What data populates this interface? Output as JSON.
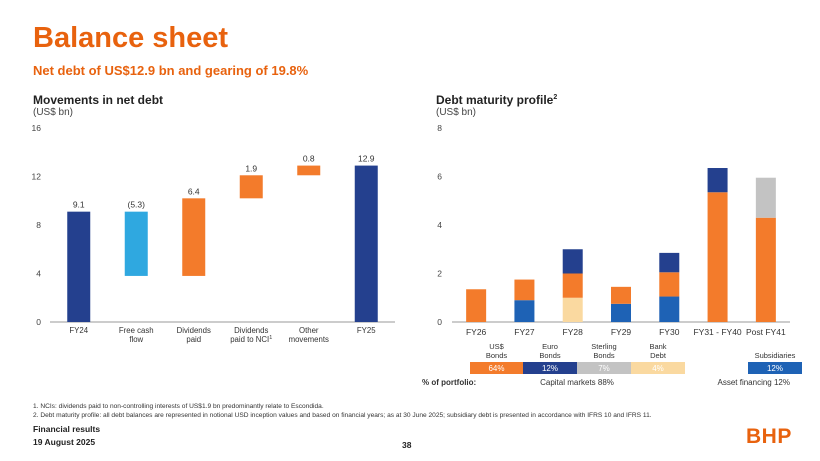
{
  "header": {
    "title": "Balance sheet",
    "subtitle": "Net debt of US$12.9 bn and gearing of 19.8%"
  },
  "colors": {
    "accent": "#E8620E",
    "navy": "#24408E",
    "lightblue": "#2FA8E0",
    "orange": "#F37B2B",
    "midblue": "#1E62B5",
    "peach": "#FAD9A0",
    "grey": "#C3C3C3"
  },
  "chart_data": [
    {
      "type": "bar",
      "subtype": "waterfall",
      "title": "Movements in net debt",
      "ylabel": "(US$ bn)",
      "ylim": [
        0,
        16
      ],
      "yticks": [
        0,
        4,
        8,
        12,
        16
      ],
      "categories": [
        "FY24",
        "Free cash\nflow",
        "Dividends\npaid",
        "Dividends\npaid to NCI",
        "Other\nmovements",
        "FY25"
      ],
      "category_labels": [
        [
          "FY24"
        ],
        [
          "Free cash",
          "flow"
        ],
        [
          "Dividends",
          "paid"
        ],
        [
          "Dividends",
          "paid to NCI"
        ],
        [
          "Other",
          "movements"
        ],
        [
          "FY25"
        ]
      ],
      "superscripts": [
        "",
        "",
        "",
        "1",
        "",
        ""
      ],
      "bars": [
        {
          "base": 0,
          "top": 9.1,
          "label": "9.1",
          "color": "navy"
        },
        {
          "base": 3.8,
          "top": 9.1,
          "label": "(5.3)",
          "color": "lightblue"
        },
        {
          "base": 3.8,
          "top": 10.2,
          "label": "6.4",
          "color": "orange"
        },
        {
          "base": 10.2,
          "top": 12.1,
          "label": "1.9",
          "color": "orange"
        },
        {
          "base": 12.1,
          "top": 12.9,
          "label": "0.8",
          "color": "orange"
        },
        {
          "base": 0,
          "top": 12.9,
          "label": "12.9",
          "color": "navy"
        }
      ]
    },
    {
      "type": "bar",
      "subtype": "stacked",
      "title": "Debt maturity profile",
      "title_sup": "2",
      "ylabel": "(US$ bn)",
      "ylim": [
        0,
        8
      ],
      "yticks": [
        0,
        2,
        4,
        6,
        8
      ],
      "categories": [
        "FY26",
        "FY27",
        "FY28",
        "FY29",
        "FY30",
        "FY31 - FY40",
        "Post FY41"
      ],
      "series": [
        {
          "name": "US$ Bonds",
          "color": "orange",
          "values": [
            1.35,
            0.85,
            1.0,
            0.7,
            1.0,
            5.35,
            4.3
          ]
        },
        {
          "name": "Euro Bonds",
          "color": "navy",
          "values": [
            0,
            0,
            1.0,
            0,
            0.8,
            1.0,
            0
          ]
        },
        {
          "name": "Sterling Bonds",
          "color": "grey",
          "values": [
            0,
            0,
            0,
            0,
            0,
            0,
            1.65
          ]
        },
        {
          "name": "Bank Debt",
          "color": "peach",
          "values": [
            0,
            0,
            1.0,
            0,
            0,
            0,
            0
          ]
        },
        {
          "name": "Subsidiaries",
          "color": "midblue",
          "values": [
            0,
            0.9,
            0,
            0.75,
            1.05,
            0,
            0
          ]
        }
      ],
      "stack_order": [
        [
          "Subsidiaries",
          "US$ Bonds"
        ],
        [
          "Subsidiaries",
          "US$ Bonds"
        ],
        [
          "Bank Debt",
          "US$ Bonds",
          "Euro Bonds"
        ],
        [
          "Subsidiaries",
          "US$ Bonds"
        ],
        [
          "Subsidiaries",
          "US$ Bonds",
          "Euro Bonds"
        ],
        [
          "US$ Bonds",
          "Euro Bonds"
        ],
        [
          "US$ Bonds",
          "Sterling Bonds"
        ]
      ],
      "legend": [
        {
          "label": [
            "US$",
            "Bonds"
          ],
          "pct": "64%",
          "color": "orange"
        },
        {
          "label": [
            "Euro",
            "Bonds"
          ],
          "pct": "12%",
          "color": "navy"
        },
        {
          "label": [
            "Sterling",
            "Bonds"
          ],
          "pct": "7%",
          "color": "grey"
        },
        {
          "label": [
            "Bank",
            "Debt"
          ],
          "pct": "4%",
          "color": "peach"
        },
        {
          "label": [
            "Subsidiaries"
          ],
          "pct": "12%",
          "color": "midblue"
        }
      ],
      "portfolio_label": "% of portfolio:",
      "capital_markets": "Capital markets 88%",
      "asset_financing": "Asset financing 12%"
    }
  ],
  "footnotes": [
    "1.  NCIs: dividends paid to non-controlling interests of US$1.9 bn predominantly relate to Escondida.",
    "2.  Debt maturity profile: all debt balances are represented in notional USD inception values and based on financial years; as at 30 June 2025; subsidiary debt is presented in accordance with IFRS 10 and IFRS 11."
  ],
  "footer": {
    "line1": "Financial results",
    "line2": "19 August 2025",
    "page": "38",
    "logo": "BHP"
  }
}
